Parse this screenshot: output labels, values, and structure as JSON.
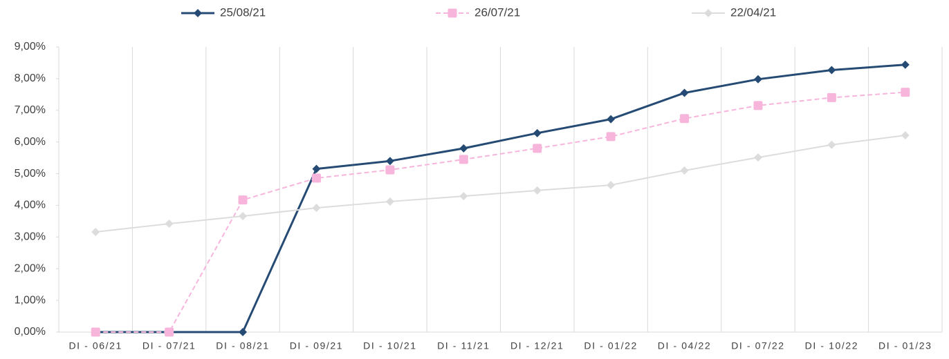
{
  "chart_data": {
    "type": "line",
    "categories": [
      "DI - 06/21",
      "DI - 07/21",
      "DI - 08/21",
      "DI - 09/21",
      "DI - 10/21",
      "DI - 11/21",
      "DI - 12/21",
      "DI - 01/22",
      "DI - 04/22",
      "DI - 07/22",
      "DI - 10/22",
      "DI - 01/23"
    ],
    "series": [
      {
        "name": "25/08/21",
        "color": "#254a73",
        "marker": "diamond",
        "dashed": false,
        "values": [
          0,
          0,
          0,
          5.15,
          5.4,
          5.8,
          6.28,
          6.72,
          7.55,
          7.98,
          8.27,
          8.44
        ]
      },
      {
        "name": "26/07/21",
        "color": "#f7b5dc",
        "marker": "square",
        "dashed": true,
        "values": [
          0,
          0,
          4.17,
          4.86,
          5.12,
          5.45,
          5.8,
          6.17,
          6.74,
          7.15,
          7.4,
          7.57
        ]
      },
      {
        "name": "22/04/21",
        "color": "#dcdcdc",
        "marker": "diamond",
        "dashed": false,
        "values": [
          3.16,
          3.42,
          3.66,
          3.92,
          4.12,
          4.29,
          4.47,
          4.64,
          5.1,
          5.51,
          5.91,
          6.21
        ]
      }
    ],
    "ylim": [
      0,
      9
    ],
    "yticks": [
      {
        "value": 0,
        "label": "0,00%"
      },
      {
        "value": 1,
        "label": "1,00%"
      },
      {
        "value": 2,
        "label": "2,00%"
      },
      {
        "value": 3,
        "label": "3,00%"
      },
      {
        "value": 4,
        "label": "4,00%"
      },
      {
        "value": 5,
        "label": "5,00%"
      },
      {
        "value": 6,
        "label": "6,00%"
      },
      {
        "value": 7,
        "label": "7,00%"
      },
      {
        "value": 8,
        "label": "8,00%"
      },
      {
        "value": 9,
        "label": "9,00%"
      }
    ],
    "legend": "top"
  }
}
